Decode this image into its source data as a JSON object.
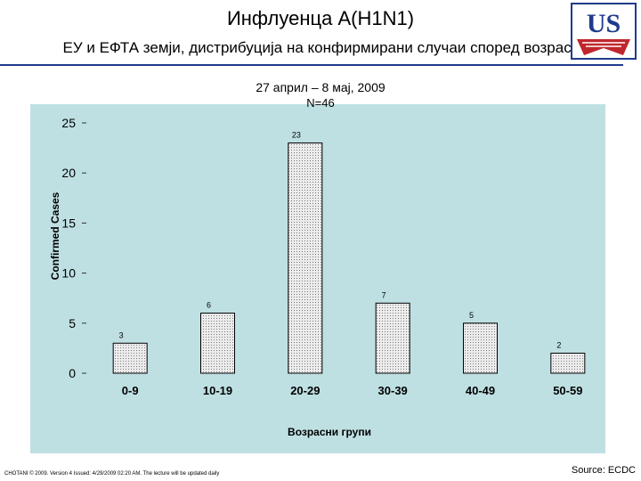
{
  "header": {
    "title": "Инфлуенца А(H1N1)",
    "subtitle": "ЕУ и ЕФТА земји, дистрибуција на конфирмирани случаи според возраст"
  },
  "logo": {
    "text": "US"
  },
  "chart_data": {
    "type": "bar",
    "date_range": "27 април – 8 мај, 2009",
    "n_label": "N=46",
    "categories": [
      "0-9",
      "10-19",
      "20-29",
      "30-39",
      "40-49",
      "50-59"
    ],
    "values": [
      3,
      6,
      23,
      7,
      5,
      2
    ],
    "data_labels": [
      "3",
      "6",
      "23",
      "7",
      "5",
      "2"
    ],
    "ylabel": "Confirmed Cases",
    "xlabel": "Возрасни групи",
    "ylim": [
      0,
      25
    ],
    "yticks": [
      0,
      5,
      10,
      15,
      20,
      25
    ],
    "grid": false,
    "colors": {
      "background": "#bfe0e3",
      "bar_fill": "#e6e6e6",
      "bar_stroke": "#000000"
    }
  },
  "footer": {
    "note": "CHOTANI © 2009. Version 4 Issued: 4/29/2009 02:20 AM. The lecture will be updated daily",
    "source": "Source: ECDC"
  },
  "theme": {
    "rule_color": "#1f3b8c",
    "logo_blue": "#1f3b8c",
    "logo_red": "#c0272d"
  }
}
